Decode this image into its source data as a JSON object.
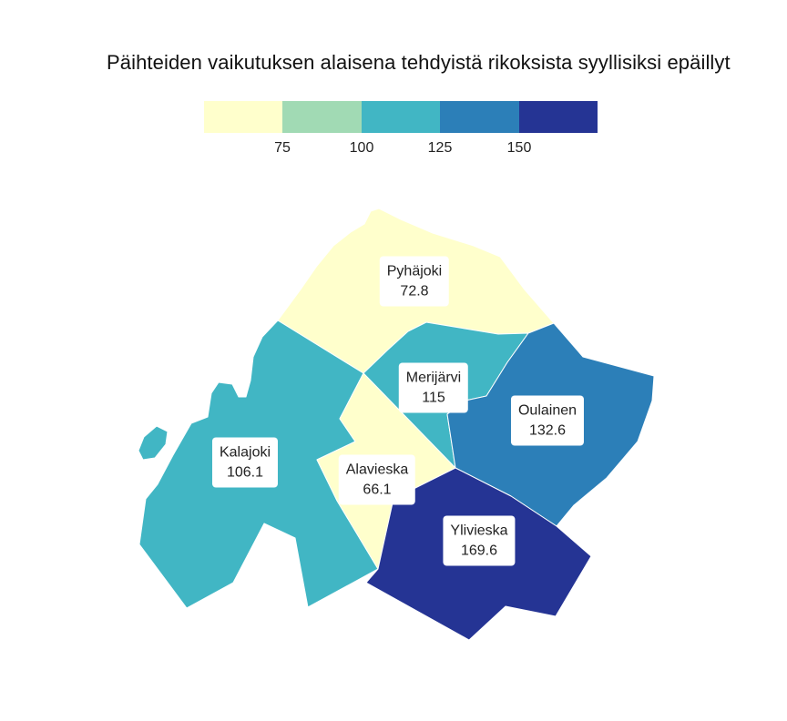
{
  "title": "Päihteiden vaikutuksen alaisena tehdyistä rikoksista syyllisiksi epäillyt",
  "legend": {
    "colors": [
      "#ffffcc",
      "#a1dab4",
      "#41b6c4",
      "#2c7fb8",
      "#253494"
    ],
    "ticks": [
      "75",
      "100",
      "125",
      "150"
    ]
  },
  "regions": [
    {
      "id": "pyhajoki",
      "name": "Pyhäjoki",
      "value": "72.8",
      "color": "#ffffcc"
    },
    {
      "id": "merijarvi",
      "name": "Merijärvi",
      "value": "115",
      "color": "#41b6c4"
    },
    {
      "id": "oulainen",
      "name": "Oulainen",
      "value": "132.6",
      "color": "#2c7fb8"
    },
    {
      "id": "kalajoki",
      "name": "Kalajoki",
      "value": "106.1",
      "color": "#41b6c4"
    },
    {
      "id": "alavieska",
      "name": "Alavieska",
      "value": "66.1",
      "color": "#ffffcc"
    },
    {
      "id": "ylivieska",
      "name": "Ylivieska",
      "value": "169.6",
      "color": "#253494"
    }
  ]
}
